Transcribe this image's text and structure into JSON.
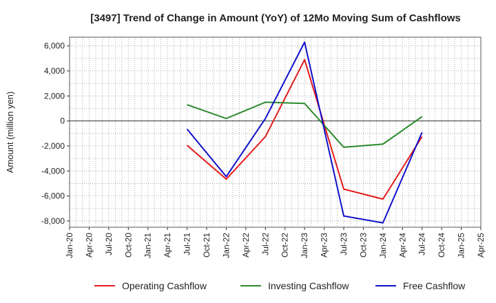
{
  "chart_data": {
    "type": "line",
    "title": "[3497]  Trend of Change in Amount (YoY) of 12Mo Moving Sum of Cashflows",
    "xlabel": "",
    "ylabel": "Amount (million yen)",
    "ylim": [
      -8500,
      6700
    ],
    "yticks": [
      6000,
      4000,
      2000,
      0,
      -2000,
      -4000,
      -6000,
      -8000
    ],
    "ytick_labels": [
      "6,000",
      "4,000",
      "2,000",
      "0",
      "-2,000",
      "-4,000",
      "-6,000",
      "-8,000"
    ],
    "x_categories": [
      "Jan-20",
      "Apr-20",
      "Jul-20",
      "Oct-20",
      "Jan-21",
      "Apr-21",
      "Jul-21",
      "Oct-21",
      "Jan-22",
      "Apr-22",
      "Jul-22",
      "Oct-22",
      "Jan-23",
      "Apr-23",
      "Jul-23",
      "Oct-23",
      "Jan-24",
      "Apr-24",
      "Jul-24",
      "Oct-24",
      "Jan-25",
      "Apr-25"
    ],
    "grid": true,
    "legend_position": "bottom",
    "series": [
      {
        "name": "Operating Cashflow",
        "color": "#e41a1c",
        "points": [
          [
            "Jul-21",
            -1950
          ],
          [
            "Jan-22",
            -4650
          ],
          [
            "Jul-22",
            -1250
          ],
          [
            "Jan-23",
            4900
          ],
          [
            "Jul-23",
            -5450
          ],
          [
            "Jan-24",
            -6250
          ],
          [
            "Jul-24",
            -1250
          ]
        ]
      },
      {
        "name": "Investing Cashflow",
        "color": "#2a8a2a",
        "points": [
          [
            "Jul-21",
            1300
          ],
          [
            "Jan-22",
            200
          ],
          [
            "Jul-22",
            1500
          ],
          [
            "Jan-23",
            1400
          ],
          [
            "Jul-23",
            -2100
          ],
          [
            "Jan-24",
            -1850
          ],
          [
            "Jul-24",
            350
          ]
        ]
      },
      {
        "name": "Free Cashflow",
        "color": "#1010cc",
        "points": [
          [
            "Jul-21",
            -650
          ],
          [
            "Jan-22",
            -4450
          ],
          [
            "Jul-22",
            200
          ],
          [
            "Jan-23",
            6300
          ],
          [
            "Jul-23",
            -7600
          ],
          [
            "Jan-24",
            -8150
          ],
          [
            "Jul-24",
            -900
          ]
        ]
      }
    ]
  }
}
